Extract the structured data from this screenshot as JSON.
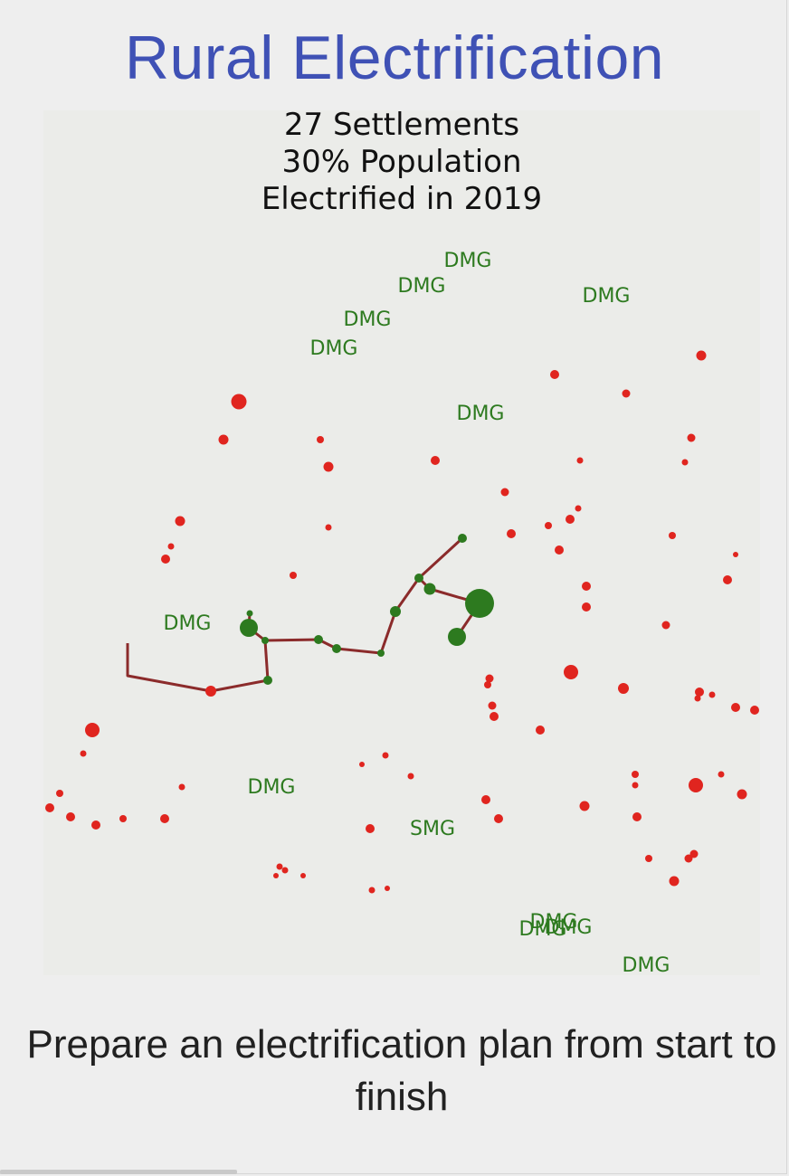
{
  "title": "Rural Electrification",
  "map": {
    "heading": [
      "27 Settlements",
      "30% Population",
      "Electrified in 2019"
    ],
    "colors": {
      "background": "#ebece9",
      "unelectrified": "#e0251f",
      "electrified": "#2d7a1f",
      "line": "#8b2b2b",
      "label": "#2d7a1f"
    },
    "labels": [
      "DMG",
      "DMG",
      "DMG",
      "DMG",
      "DMG",
      "DMG",
      "DMG",
      "DMG",
      "SMG",
      "DMG",
      "DMG",
      "DMG",
      "DMG"
    ]
  },
  "caption": "Prepare an electrification plan from start to finish"
}
